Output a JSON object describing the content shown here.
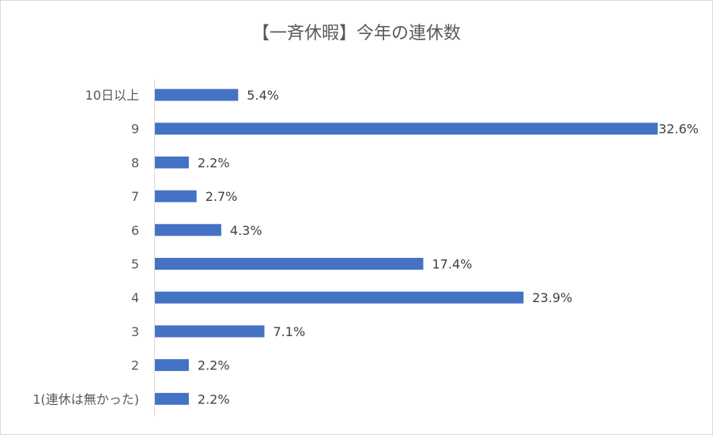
{
  "chart_data": {
    "type": "bar",
    "orientation": "horizontal",
    "title": "【一斉休暇】今年の連休数",
    "categories": [
      "10日以上",
      "9",
      "8",
      "7",
      "6",
      "5",
      "4",
      "3",
      "2",
      "1(連休は無かった)"
    ],
    "values": [
      5.4,
      32.6,
      2.2,
      2.7,
      4.3,
      17.4,
      23.9,
      7.1,
      2.2,
      2.2
    ],
    "value_labels": [
      "5.4%",
      "32.6%",
      "2.2%",
      "2.7%",
      "4.3%",
      "17.4%",
      "23.9%",
      "7.1%",
      "2.2%",
      "2.2%"
    ],
    "unit": "%",
    "xlim": [
      0,
      32.6
    ],
    "bar_color": "#4472C4",
    "grid": false,
    "legend": "none"
  }
}
